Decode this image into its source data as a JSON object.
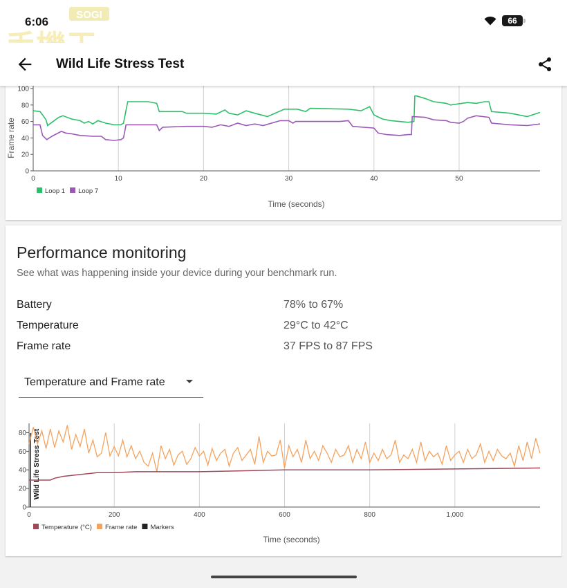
{
  "status_bar": {
    "time": "6:06",
    "battery_level": "66",
    "watermark_text": "SOGI",
    "watermark_chars": "手機王"
  },
  "app_bar": {
    "title": "Wild Life Stress Test"
  },
  "frame_chart": {
    "chart_data": {
      "type": "line",
      "xlabel": "Time (seconds)",
      "ylabel": "Frame rate",
      "xlim": [
        0,
        59.5
      ],
      "ylim": [
        0,
        100
      ],
      "x_ticks": [
        "0",
        "10",
        "20",
        "30",
        "40",
        "50"
      ],
      "y_ticks": [
        "100",
        "80",
        "60",
        "40",
        "20",
        "0"
      ],
      "grid": "vertical",
      "legend_position": "bottom-left",
      "series": [
        {
          "name": "Loop 1",
          "color": "#2ebf6a",
          "points": [
            [
              0,
              73
            ],
            [
              0.8,
              72
            ],
            [
              1.1,
              68
            ],
            [
              1.5,
              62
            ],
            [
              1.7,
              55
            ],
            [
              2.2,
              59
            ],
            [
              3,
              65
            ],
            [
              3.5,
              67
            ],
            [
              4.5,
              63
            ],
            [
              5.5,
              61
            ],
            [
              6,
              58
            ],
            [
              6.5,
              60
            ],
            [
              7,
              57
            ],
            [
              7.6,
              61
            ],
            [
              8.5,
              58
            ],
            [
              9.5,
              56
            ],
            [
              10.3,
              56
            ],
            [
              10.6,
              58
            ],
            [
              11.1,
              84
            ],
            [
              13.5,
              84
            ],
            [
              14.5,
              82
            ],
            [
              14.8,
              72
            ],
            [
              17.5,
              72
            ],
            [
              18,
              70
            ],
            [
              20,
              70
            ],
            [
              21.5,
              69
            ],
            [
              22.5,
              74
            ],
            [
              23,
              70
            ],
            [
              24,
              68
            ],
            [
              25,
              73
            ],
            [
              26,
              70
            ],
            [
              27.5,
              66
            ],
            [
              29.5,
              75
            ],
            [
              31,
              75
            ],
            [
              32,
              72
            ],
            [
              32.5,
              76
            ],
            [
              37,
              75
            ],
            [
              38.5,
              73
            ],
            [
              39.5,
              78
            ],
            [
              40,
              68
            ],
            [
              41,
              63
            ],
            [
              42,
              61
            ],
            [
              43,
              60
            ],
            [
              44,
              59
            ],
            [
              44.7,
              60
            ],
            [
              44.8,
              91
            ],
            [
              45,
              91
            ],
            [
              46,
              88
            ],
            [
              47,
              84
            ],
            [
              48.5,
              82
            ],
            [
              49,
              80
            ],
            [
              51,
              83
            ],
            [
              52,
              82
            ],
            [
              53,
              84
            ],
            [
              53.5,
              84
            ],
            [
              53.8,
              72
            ],
            [
              56,
              70
            ],
            [
              58,
              66
            ],
            [
              59.5,
              71
            ]
          ]
        },
        {
          "name": "Loop 7",
          "color": "#9b59b6",
          "points": [
            [
              0,
              56
            ],
            [
              0.8,
              56
            ],
            [
              1.1,
              43
            ],
            [
              1.6,
              38
            ],
            [
              2.2,
              42
            ],
            [
              3.3,
              48
            ],
            [
              3.8,
              46
            ],
            [
              4.5,
              45
            ],
            [
              5.5,
              43
            ],
            [
              7,
              42
            ],
            [
              8,
              42
            ],
            [
              8.5,
              38
            ],
            [
              9.5,
              37
            ],
            [
              10.3,
              38
            ],
            [
              10.6,
              40
            ],
            [
              10.9,
              56
            ],
            [
              14.5,
              56
            ],
            [
              14.8,
              49
            ],
            [
              15.2,
              53
            ],
            [
              18,
              54
            ],
            [
              20,
              54
            ],
            [
              21,
              53
            ],
            [
              22,
              56
            ],
            [
              23,
              54
            ],
            [
              24,
              58
            ],
            [
              25,
              55
            ],
            [
              26,
              57
            ],
            [
              27,
              55
            ],
            [
              29,
              61
            ],
            [
              30,
              61
            ],
            [
              30.5,
              58
            ],
            [
              30.8,
              60
            ],
            [
              36,
              60
            ],
            [
              37,
              61
            ],
            [
              37.5,
              54
            ],
            [
              40,
              52
            ],
            [
              40.5,
              46
            ],
            [
              41.5,
              44
            ],
            [
              43,
              43
            ],
            [
              44,
              44
            ],
            [
              44.4,
              44
            ],
            [
              44.5,
              66
            ],
            [
              46,
              65
            ],
            [
              47,
              62
            ],
            [
              48.5,
              61
            ],
            [
              49,
              59
            ],
            [
              50,
              58
            ],
            [
              50.5,
              60
            ],
            [
              51,
              64
            ],
            [
              52,
              67
            ],
            [
              53.5,
              65
            ],
            [
              53.8,
              58
            ],
            [
              56,
              56
            ],
            [
              58,
              55
            ],
            [
              59.5,
              57
            ]
          ]
        }
      ]
    }
  },
  "performance": {
    "title": "Performance monitoring",
    "subtitle": "See what was happening inside your device during your benchmark run.",
    "stats": [
      {
        "label": "Battery",
        "value": "78% to 67%"
      },
      {
        "label": "Temperature",
        "value": "29°C to 42°C"
      },
      {
        "label": "Frame rate",
        "value": "37 FPS to 87 FPS"
      }
    ],
    "dropdown": {
      "selected": "Temperature and Frame rate"
    }
  },
  "perf_chart": {
    "chart_data": {
      "type": "line",
      "xlabel": "Time (seconds)",
      "marker_label": "Wild Life Stress Test",
      "xlim": [
        0,
        1200
      ],
      "ylim": [
        0,
        90
      ],
      "x_ticks": [
        "0",
        "200",
        "400",
        "600",
        "800",
        "1,000"
      ],
      "y_ticks": [
        "80",
        "60",
        "40",
        "20",
        "0"
      ],
      "legend_position": "bottom-left",
      "legend": [
        {
          "name": "Temperature (°C)",
          "color": "#a0485a"
        },
        {
          "name": "Frame rate",
          "color": "#f5a25d"
        },
        {
          "name": "Markers",
          "color": "#222222"
        }
      ],
      "series": [
        {
          "name": "Temperature (°C)",
          "color": "#a0485a",
          "x": [
            0,
            50,
            60,
            80,
            100,
            140,
            160,
            200,
            250,
            400,
            500,
            600,
            700,
            800,
            1000,
            1200
          ],
          "y": [
            29,
            29,
            31,
            33,
            34,
            36,
            37,
            37,
            38,
            38,
            39,
            40,
            40,
            40,
            41,
            42
          ]
        },
        {
          "name": "Frame rate",
          "color": "#f5a25d",
          "x": [
            0,
            10,
            20,
            30,
            40,
            50,
            60,
            70,
            80,
            90,
            100,
            110,
            120,
            130,
            140,
            150,
            160,
            170,
            180,
            190,
            200,
            210,
            220,
            230,
            240,
            250,
            260,
            270,
            280,
            290,
            300,
            310,
            320,
            330,
            340,
            350,
            360,
            370,
            380,
            390,
            400,
            410,
            420,
            430,
            440,
            450,
            460,
            470,
            480,
            490,
            500,
            510,
            520,
            530,
            540,
            550,
            560,
            570,
            580,
            590,
            600,
            610,
            620,
            630,
            640,
            650,
            660,
            670,
            680,
            690,
            700,
            710,
            720,
            730,
            740,
            750,
            760,
            770,
            780,
            790,
            800,
            810,
            820,
            830,
            840,
            850,
            860,
            870,
            880,
            890,
            900,
            910,
            920,
            930,
            940,
            950,
            960,
            970,
            980,
            990,
            1000,
            1010,
            1020,
            1030,
            1040,
            1050,
            1060,
            1070,
            1080,
            1090,
            1100,
            1110,
            1120,
            1130,
            1140,
            1150,
            1160,
            1170,
            1180,
            1190,
            1200
          ],
          "y": [
            68,
            86,
            68,
            82,
            63,
            84,
            64,
            82,
            70,
            88,
            62,
            78,
            65,
            84,
            58,
            72,
            54,
            58,
            80,
            55,
            65,
            55,
            72,
            54,
            66,
            52,
            60,
            48,
            44,
            58,
            38,
            66,
            52,
            62,
            45,
            56,
            60,
            46,
            52,
            64,
            55,
            60,
            45,
            63,
            50,
            58,
            62,
            44,
            58,
            64,
            50,
            56,
            62,
            46,
            76,
            48,
            60,
            55,
            56,
            72,
            42,
            66,
            54,
            62,
            48,
            72,
            52,
            60,
            50,
            66,
            58,
            48,
            62,
            54,
            56,
            66,
            48,
            62,
            52,
            70,
            48,
            58,
            50,
            62,
            52,
            56,
            72,
            48,
            56,
            52,
            62,
            48,
            70,
            50,
            60,
            54,
            58,
            46,
            66,
            50,
            56,
            60,
            48,
            62,
            52,
            56,
            68,
            48,
            60,
            50,
            62,
            55,
            52,
            58,
            44,
            66,
            50,
            70,
            52,
            74,
            58
          ]
        }
      ]
    }
  }
}
